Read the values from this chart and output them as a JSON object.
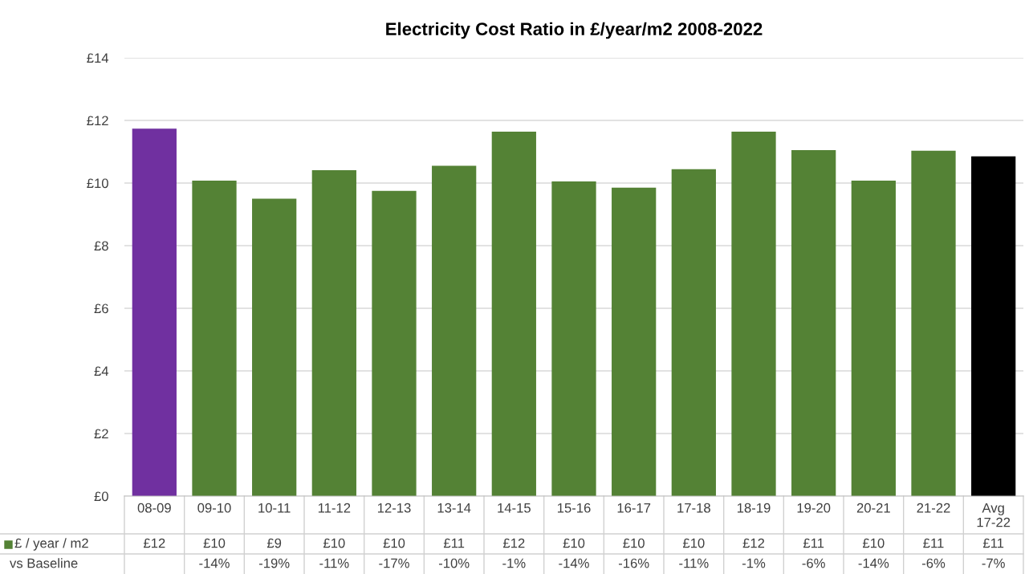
{
  "chart_data": {
    "type": "bar",
    "title": "Electricity Cost Ratio in £/year/m2 2008-2022",
    "categories": [
      "08-09",
      "09-10",
      "10-11",
      "11-12",
      "12-13",
      "13-14",
      "14-15",
      "15-16",
      "16-17",
      "17-18",
      "18-19",
      "19-20",
      "20-21",
      "21-22",
      "Avg\n17-22"
    ],
    "series": [
      {
        "name": "£ / year / m2",
        "color": "#548235",
        "colors": [
          "#7030a0",
          "#548235",
          "#548235",
          "#548235",
          "#548235",
          "#548235",
          "#548235",
          "#548235",
          "#548235",
          "#548235",
          "#548235",
          "#548235",
          "#548235",
          "#548235",
          "#000000"
        ],
        "values": [
          11.74,
          10.08,
          9.5,
          10.41,
          9.75,
          10.55,
          11.64,
          10.05,
          9.85,
          10.44,
          11.64,
          11.05,
          10.08,
          11.03,
          10.85
        ],
        "value_labels": [
          "£12",
          "£10",
          "£9",
          "£10",
          "£10",
          "£11",
          "£12",
          "£10",
          "£10",
          "£10",
          "£12",
          "£11",
          "£10",
          "£11",
          "£11"
        ]
      }
    ],
    "ylim": [
      0,
      14
    ],
    "yticks": [
      {
        "value": 0,
        "label": "£0"
      },
      {
        "value": 2,
        "label": "£2"
      },
      {
        "value": 4,
        "label": "£4"
      },
      {
        "value": 6,
        "label": "£6"
      },
      {
        "value": 8,
        "label": "£8"
      },
      {
        "value": 10,
        "label": "£10"
      },
      {
        "value": 12,
        "label": "£12"
      },
      {
        "value": 14,
        "label": "£14"
      }
    ],
    "grid": "y",
    "annotations": [
      "vs Baseline",
      "-14%",
      "-19%",
      "-11%",
      "-17%",
      "-10%",
      "-1%",
      "-14%",
      "-16%",
      "-11%",
      "-1%",
      "-6%",
      "-14%",
      "-6%",
      "-7%"
    ]
  }
}
